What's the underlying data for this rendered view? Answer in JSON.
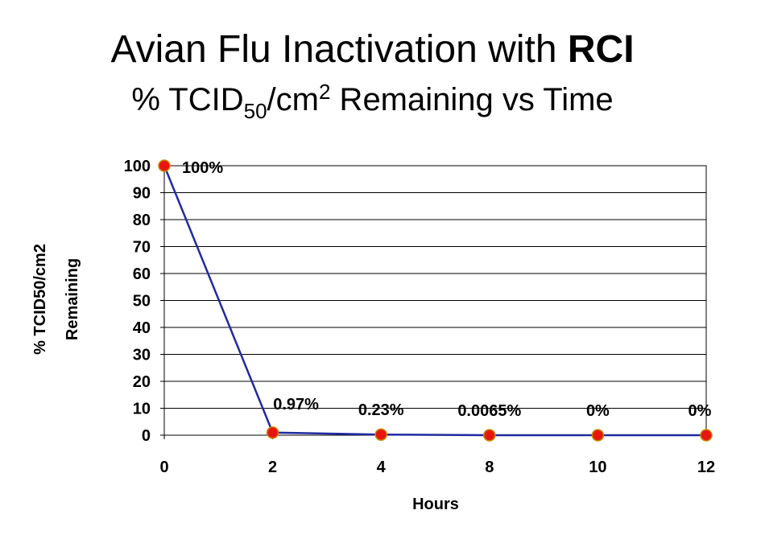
{
  "title": {
    "prefix": "Avian Flu Inactivation with ",
    "bold": "RCI",
    "sub_pre": "% TCID",
    "sub_subscript": "50",
    "sub_mid": "/cm",
    "sub_superscript": "2",
    "sub_post": "  Remaining vs Time"
  },
  "chart_data": {
    "type": "line",
    "categories": [
      "0",
      "2",
      "4",
      "8",
      "10",
      "12"
    ],
    "series": [
      {
        "values": [
          100,
          0.97,
          0.23,
          0.0065,
          0,
          0
        ]
      }
    ],
    "data_labels": [
      "100%",
      "0.97%",
      "0.23%",
      "0.0065%",
      "0%",
      "0%"
    ],
    "xlabel": "Hours",
    "ylabel": [
      "% TCID50/cm2",
      "Remaining"
    ],
    "yticks": [
      0,
      10,
      20,
      30,
      40,
      50,
      60,
      70,
      80,
      90,
      100
    ],
    "ylim": [
      0,
      100
    ],
    "grid": true,
    "line_color": "#1f2aa0",
    "marker_color": "#e8150e",
    "marker_edge_color": "#c98a00"
  }
}
